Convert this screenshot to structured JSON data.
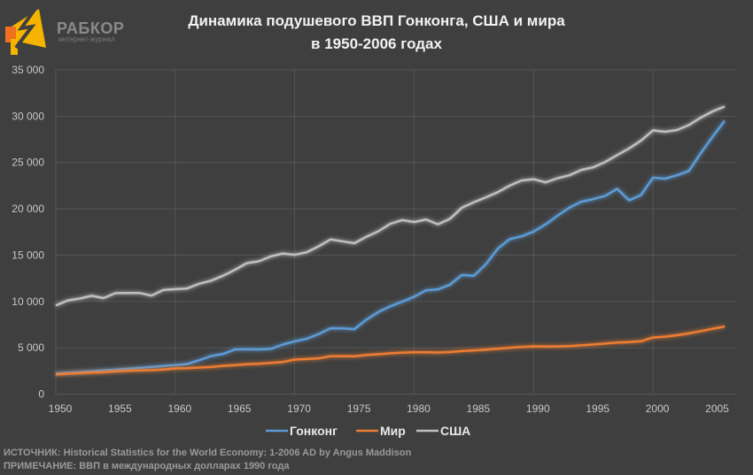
{
  "logo": {
    "text": "РАБКОР",
    "subtitle": "интернет-журнал"
  },
  "notes": {
    "source": "ИСТОЧНИК: Historical Statistics for the World Economy:  1-2006 AD by Angus Maddison",
    "note": "ПРИМЕЧАНИЕ: ВВП в международных долларах 1990 года"
  },
  "chart_data": {
    "type": "line",
    "title_line1": "Динамика подушевого ВВП Гонконга, США и мира",
    "title_line2": "в 1950-2006 годах",
    "xlabel": "",
    "ylabel": "",
    "xlim": [
      1950,
      2006
    ],
    "ylim": [
      0,
      35000
    ],
    "yticks": [
      0,
      5000,
      10000,
      15000,
      20000,
      25000,
      30000,
      35000
    ],
    "ytick_labels": [
      "0",
      "5 000",
      "10 000",
      "15 000",
      "20 000",
      "25 000",
      "30 000",
      "35 000"
    ],
    "xticks": [
      1950,
      1955,
      1960,
      1965,
      1970,
      1975,
      1980,
      1985,
      1990,
      1995,
      2000,
      2005
    ],
    "grid": true,
    "legend_position": "bottom",
    "background": "#3f3f3f",
    "x": [
      1950,
      1951,
      1952,
      1953,
      1954,
      1955,
      1956,
      1957,
      1958,
      1959,
      1960,
      1961,
      1962,
      1963,
      1964,
      1965,
      1966,
      1967,
      1968,
      1969,
      1970,
      1971,
      1972,
      1973,
      1974,
      1975,
      1976,
      1977,
      1978,
      1979,
      1980,
      1981,
      1982,
      1983,
      1984,
      1985,
      1986,
      1987,
      1988,
      1989,
      1990,
      1991,
      1992,
      1993,
      1994,
      1995,
      1996,
      1997,
      1998,
      1999,
      2000,
      2001,
      2002,
      2003,
      2004,
      2005,
      2006
    ],
    "series": [
      {
        "name": "Гонконг",
        "color": "#5b9bd5",
        "values": [
          2218,
          2295,
          2377,
          2460,
          2546,
          2636,
          2729,
          2825,
          2924,
          3027,
          3134,
          3244,
          3652,
          4107,
          4323,
          4825,
          4833,
          4824,
          4880,
          5345,
          5695,
          5968,
          6473,
          7105,
          7091,
          7012,
          8036,
          8857,
          9470,
          9970,
          10503,
          11202,
          11310,
          11808,
          12853,
          12763,
          13999,
          15692,
          16723,
          17026,
          17541,
          18321,
          19257,
          20124,
          20772,
          21048,
          21401,
          22163,
          20916,
          21484,
          23359,
          23256,
          23615,
          24080,
          26000,
          27800,
          29500
        ]
      },
      {
        "name": "Мир",
        "color": "#ed7d31",
        "values": [
          2111,
          2192,
          2258,
          2322,
          2350,
          2444,
          2511,
          2561,
          2578,
          2648,
          2773,
          2800,
          2868,
          2926,
          3044,
          3132,
          3226,
          3262,
          3358,
          3471,
          3729,
          3780,
          3859,
          4083,
          4101,
          4081,
          4216,
          4296,
          4402,
          4476,
          4512,
          4520,
          4492,
          4538,
          4641,
          4722,
          4806,
          4891,
          5008,
          5081,
          5150,
          5135,
          5146,
          5173,
          5259,
          5346,
          5451,
          5562,
          5612,
          5701,
          6100,
          6200,
          6350,
          6550,
          6800,
          7050,
          7300
        ]
      },
      {
        "name": "США",
        "color": "#bfbfbf",
        "values": [
          9561,
          10116,
          10316,
          10613,
          10359,
          10897,
          10914,
          10920,
          10631,
          11230,
          11328,
          11402,
          11905,
          12242,
          12773,
          13419,
          14134,
          14330,
          14863,
          15179,
          15030,
          15304,
          15944,
          16689,
          16491,
          16284,
          16975,
          17567,
          18373,
          18789,
          18577,
          18856,
          18325,
          18920,
          20123,
          20717,
          21236,
          21788,
          22499,
          23059,
          23201,
          22849,
          23298,
          23616,
          24197,
          24483,
          25056,
          25806,
          26520,
          27369,
          28467,
          28318,
          28505,
          29037,
          29843,
          30519,
          31049
        ]
      }
    ]
  }
}
